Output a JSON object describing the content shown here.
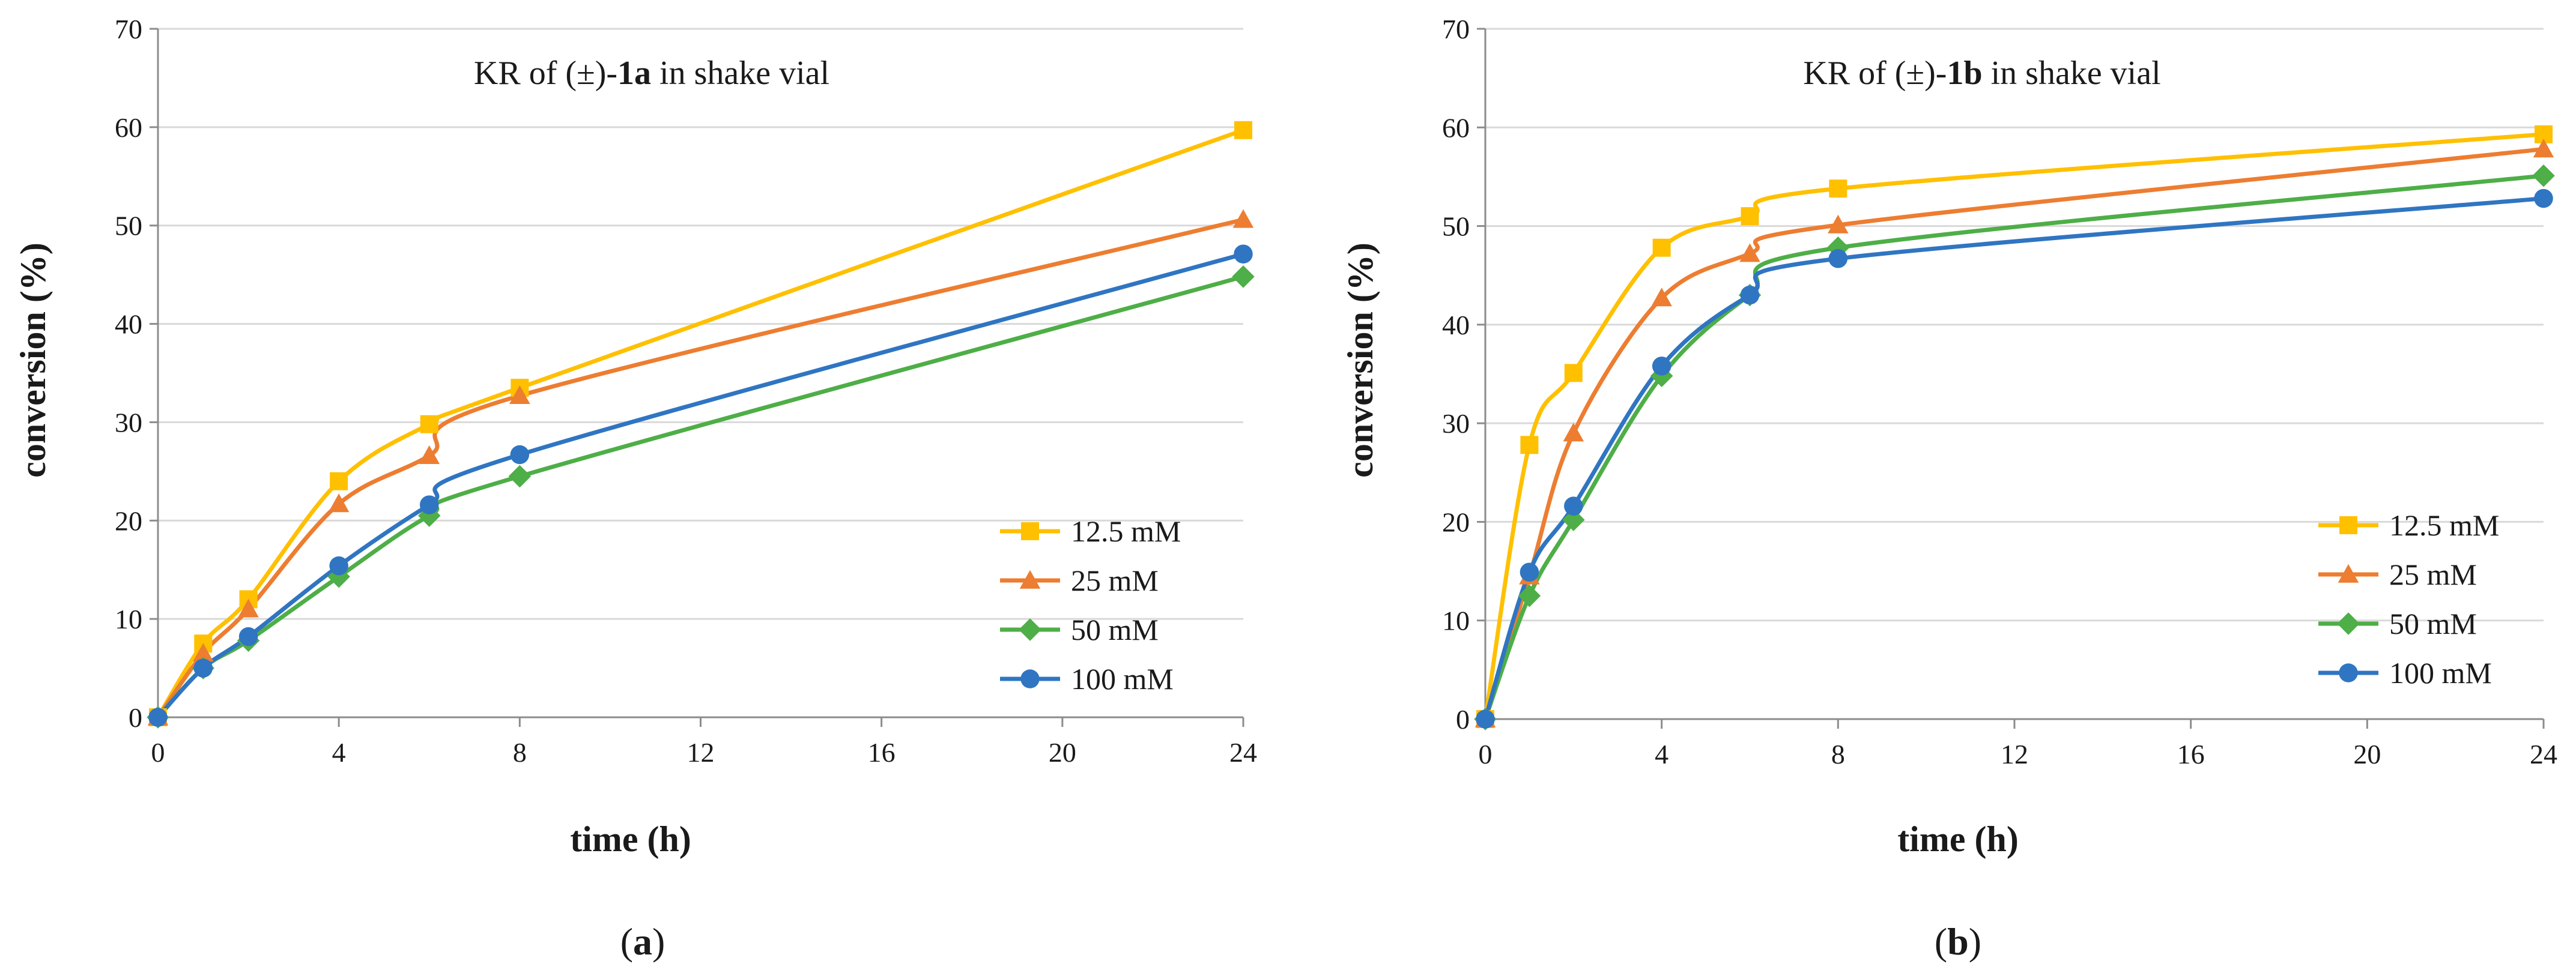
{
  "chart_data": [
    {
      "type": "line",
      "panel_label": {
        "open": "(",
        "letter": "a",
        "close": ")"
      },
      "title": {
        "prefix": "KR of (±)-",
        "compound": "1a",
        "suffix": " in shake vial"
      },
      "xlabel": "time (h)",
      "ylabel": "conversion (%)",
      "xlim": [
        0,
        24
      ],
      "ylim": [
        0,
        70
      ],
      "xticks": [
        0,
        4,
        8,
        12,
        16,
        20,
        24
      ],
      "yticks": [
        0,
        10,
        20,
        30,
        40,
        50,
        60,
        70
      ],
      "grid": true,
      "legend_position": "bottom-right",
      "x": [
        0,
        1,
        2,
        4,
        6,
        8,
        24
      ],
      "series": [
        {
          "name": "12.5 mM",
          "color": "#FFC000",
          "marker": "square",
          "values": [
            0,
            7.5,
            12,
            24,
            29.8,
            33.5,
            59.7
          ]
        },
        {
          "name": "25 mM",
          "color": "#ED7D31",
          "marker": "triangle",
          "values": [
            0,
            6.5,
            11,
            21.7,
            26.6,
            32.7,
            50.6
          ]
        },
        {
          "name": "50 mM",
          "color": "#4EAE47",
          "marker": "diamond",
          "values": [
            0,
            5,
            7.8,
            14.3,
            20.5,
            24.5,
            44.8
          ]
        },
        {
          "name": "100 mM",
          "color": "#2F75C2",
          "marker": "circle",
          "values": [
            0,
            5,
            8.2,
            15.4,
            21.6,
            26.7,
            47.1
          ]
        }
      ]
    },
    {
      "type": "line",
      "panel_label": {
        "open": "(",
        "letter": "b",
        "close": ")"
      },
      "title": {
        "prefix": "KR of (±)-",
        "compound": "1b",
        "suffix": " in shake vial"
      },
      "xlabel": "time (h)",
      "ylabel": "conversion (%)",
      "xlim": [
        0,
        24
      ],
      "ylim": [
        0,
        70
      ],
      "xticks": [
        0,
        4,
        8,
        12,
        16,
        20,
        24
      ],
      "yticks": [
        0,
        10,
        20,
        30,
        40,
        50,
        60,
        70
      ],
      "grid": true,
      "legend_position": "bottom-right",
      "x": [
        0,
        1,
        2,
        4,
        6,
        8,
        24
      ],
      "series": [
        {
          "name": "12.5 mM",
          "color": "#FFC000",
          "marker": "square",
          "values": [
            0,
            27.8,
            35.1,
            47.8,
            51,
            53.8,
            59.3
          ]
        },
        {
          "name": "25 mM",
          "color": "#ED7D31",
          "marker": "triangle",
          "values": [
            0,
            14.5,
            29,
            42.7,
            47.2,
            50.1,
            57.8
          ]
        },
        {
          "name": "50 mM",
          "color": "#4EAE47",
          "marker": "diamond",
          "values": [
            0,
            12.5,
            20.2,
            34.8,
            43,
            47.8,
            55.1
          ]
        },
        {
          "name": "100 mM",
          "color": "#2F75C2",
          "marker": "circle",
          "values": [
            0,
            14.9,
            21.6,
            35.8,
            43,
            46.7,
            52.8
          ]
        }
      ]
    }
  ]
}
